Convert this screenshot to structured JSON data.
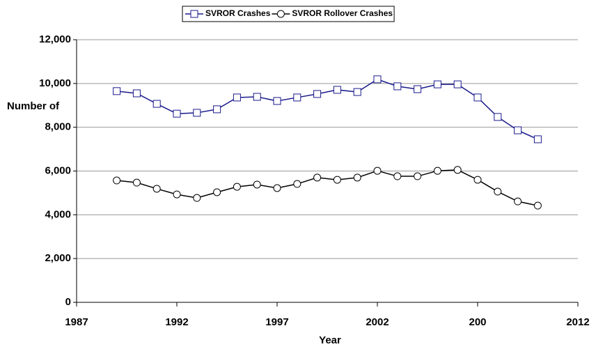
{
  "chart_data": {
    "type": "line",
    "x_label": "Year",
    "y_label": "Number of",
    "x": [
      1989,
      1990,
      1991,
      1992,
      1993,
      1994,
      1995,
      1996,
      1997,
      1998,
      1999,
      2000,
      2001,
      2002,
      2003,
      2004,
      2005,
      2006,
      2007,
      2008,
      2009,
      2010
    ],
    "series": [
      {
        "name": "SVROR Crashes",
        "color": "#1a1a8c",
        "marker": "square",
        "values": [
          9650,
          9550,
          9070,
          8620,
          8660,
          8820,
          9360,
          9390,
          9200,
          9360,
          9520,
          9710,
          9610,
          10190,
          9870,
          9740,
          9960,
          9960,
          9360,
          8470,
          7860,
          7450
        ]
      },
      {
        "name": "SVROR Rollover Crashes",
        "color": "#000000",
        "marker": "circle",
        "values": [
          5570,
          5470,
          5190,
          4930,
          4770,
          5030,
          5280,
          5380,
          5220,
          5410,
          5700,
          5600,
          5700,
          6010,
          5760,
          5760,
          6010,
          6050,
          5600,
          5060,
          4610,
          4420
        ]
      }
    ],
    "xlim": [
      1987,
      2012
    ],
    "xticks": [
      1987,
      1992,
      1997,
      2002,
      {
        "value": 2007,
        "label": "200"
      },
      2012
    ],
    "ylim": [
      0,
      12000
    ],
    "yticks": [
      0,
      {
        "value": 2000,
        "label": "2,000"
      },
      {
        "value": 4000,
        "label": "4,000"
      },
      {
        "value": 6000,
        "label": "6,000"
      },
      {
        "value": 8000,
        "label": "8,000"
      },
      {
        "value": 10000,
        "label": "10,000"
      },
      {
        "value": 12000,
        "label": "12,000"
      }
    ],
    "grid": true,
    "legend": "top"
  }
}
